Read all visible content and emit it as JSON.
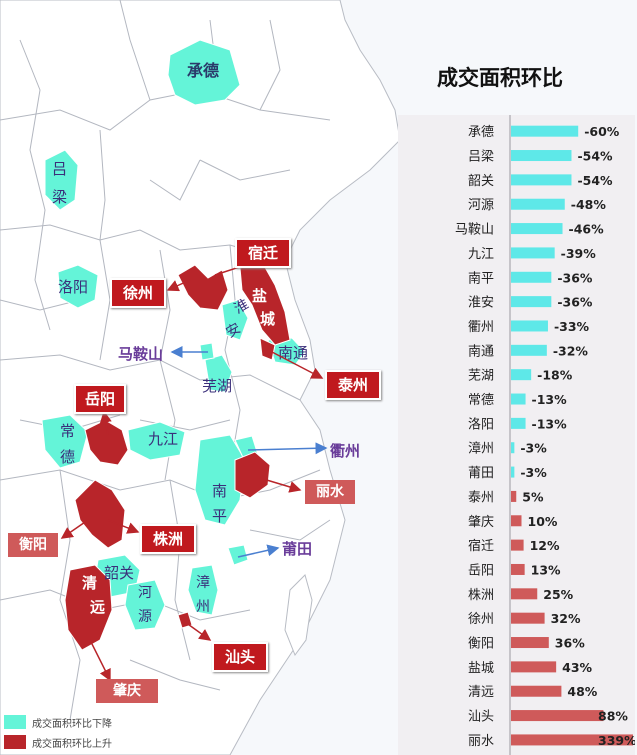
{
  "chart_title": "成交面积环比",
  "colors": {
    "decrease": "#64f4d8",
    "increase": "#b8252a",
    "bar_decrease": "#5ee8e8",
    "bar_increase": "#cf5a5a"
  },
  "chart_data": {
    "type": "bar",
    "orientation": "horizontal",
    "title": "成交面积环比",
    "categories": [
      "承德",
      "吕梁",
      "韶关",
      "河源",
      "马鞍山",
      "九江",
      "南平",
      "淮安",
      "衢州",
      "南通",
      "芜湖",
      "常德",
      "洛阳",
      "漳州",
      "莆田",
      "泰州",
      "肇庆",
      "宿迁",
      "岳阳",
      "株洲",
      "徐州",
      "衡阳",
      "盐城",
      "清远",
      "汕头",
      "丽水"
    ],
    "values": [
      -60,
      -54,
      -54,
      -48,
      -46,
      -39,
      -36,
      -36,
      -33,
      -32,
      -18,
      -13,
      -13,
      -3,
      -3,
      5,
      10,
      12,
      13,
      25,
      32,
      36,
      43,
      48,
      88,
      339
    ],
    "labels": [
      "-60%",
      "-54%",
      "-54%",
      "-48%",
      "-46%",
      "-39%",
      "-36%",
      "-36%",
      "-33%",
      "-32%",
      "-18%",
      "-13%",
      "-13%",
      "-3%",
      "-3%",
      "5%",
      "10%",
      "12%",
      "13%",
      "25%",
      "32%",
      "36%",
      "43%",
      "48%",
      "88%",
      "339%"
    ]
  },
  "map_labels": {
    "chengde": "承德",
    "lvliang_a": "吕",
    "lvliang_b": "梁",
    "luoyang": "洛阳",
    "changde_a": "常",
    "changde_b": "德",
    "jiujiang": "九江",
    "wuhu": "芜湖",
    "nantong": "南通",
    "nanping_a": "南",
    "nanping_b": "平",
    "shaoguan": "韶关",
    "heyuan_a": "河",
    "heyuan_b": "源",
    "zhangzhou_a": "漳",
    "zhangzhou_b": "州",
    "huaian_a": "淮",
    "huaian_b": "安",
    "yancheng_a": "盐",
    "yancheng_b": "城",
    "qingyuan_a": "清",
    "qingyuan_b": "远"
  },
  "callouts": {
    "suqian": "宿迁",
    "xuzhou": "徐州",
    "taizhou": "泰州",
    "maanshan": "马鞍山",
    "yueyang": "岳阳",
    "quzhou": "衢州",
    "lishui": "丽水",
    "zhuzhou": "株洲",
    "hengyang": "衡阳",
    "putian": "莆田",
    "shantou": "汕头",
    "zhaoqing": "肇庆"
  },
  "legend": {
    "decrease": "成交面积环比下降",
    "increase": "成交面积环比上升"
  }
}
